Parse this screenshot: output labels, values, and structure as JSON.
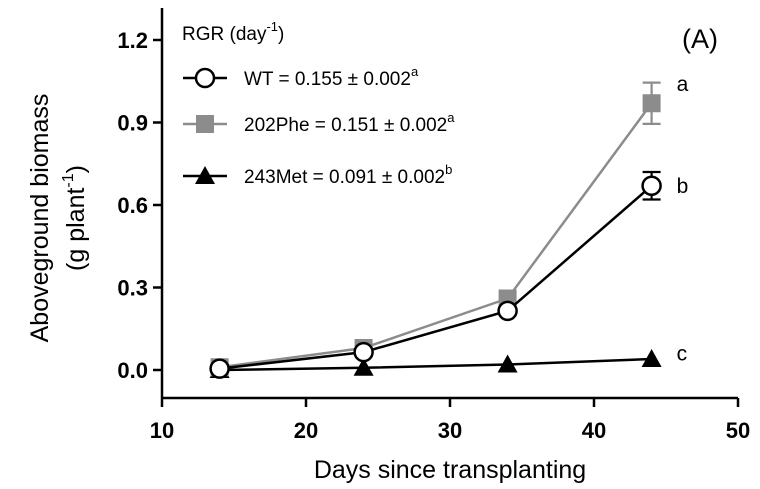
{
  "chart_data": {
    "type": "line",
    "panel_label": "(A)",
    "xlabel": "Days since transplanting",
    "ylabel_line1": "Aboveground biomass",
    "ylabel_line2_prefix": "(g plant",
    "ylabel_line2_exp": "-1",
    "ylabel_line2_suffix": ")",
    "xlim": [
      10,
      50
    ],
    "ylim": [
      -0.1,
      1.25
    ],
    "xticks": [
      10,
      20,
      30,
      40,
      50
    ],
    "xtick_labels": [
      "10",
      "20",
      "30",
      "40",
      "50"
    ],
    "yticks": [
      0.0,
      0.3,
      0.6,
      0.9,
      1.2
    ],
    "ytick_labels": [
      "0.0",
      "0.3",
      "0.6",
      "0.9",
      "1.2"
    ],
    "legend_title_prefix": "RGR (day",
    "legend_title_exp": "-1",
    "legend_title_suffix": ")",
    "grid": false,
    "series": [
      {
        "name": "WT",
        "legend_main": "WT = 0.155 ± 0.002",
        "legend_sup": "a",
        "marker": "circle-open",
        "color": "#000000",
        "x": [
          14,
          24,
          34,
          44
        ],
        "y": [
          0.005,
          0.065,
          0.215,
          0.67
        ],
        "err": [
          0.01,
          0.012,
          0.015,
          0.05
        ],
        "end_label": "b"
      },
      {
        "name": "202Phe",
        "legend_main": "202Phe = 0.151 ± 0.002",
        "legend_sup": "a",
        "marker": "square",
        "color": "#8c8c8c",
        "x": [
          14,
          24,
          34,
          44
        ],
        "y": [
          0.01,
          0.08,
          0.26,
          0.97
        ],
        "err": [
          0.01,
          0.012,
          0.015,
          0.075
        ],
        "end_label": "a"
      },
      {
        "name": "243Met",
        "legend_main": "243Met = 0.091 ± 0.002",
        "legend_sup": "b",
        "marker": "triangle",
        "color": "#000000",
        "x": [
          14,
          24,
          34,
          44
        ],
        "y": [
          0.0,
          0.008,
          0.02,
          0.04
        ],
        "err": [
          0.003,
          0.003,
          0.004,
          0.005
        ],
        "end_label": "c"
      }
    ]
  }
}
